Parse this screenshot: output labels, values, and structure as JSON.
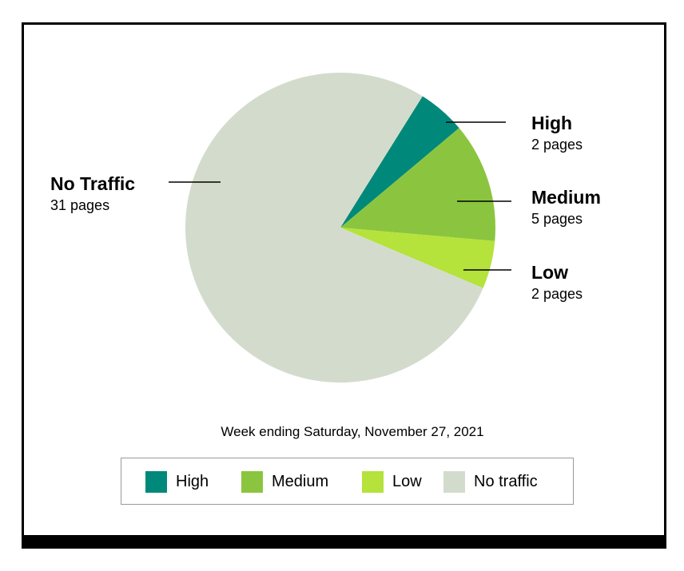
{
  "chart_data": {
    "type": "pie",
    "categories": [
      "High",
      "Medium",
      "Low",
      "No Traffic"
    ],
    "values": [
      2,
      5,
      2,
      31
    ],
    "colors": [
      "#00897b",
      "#8bc53f",
      "#b5e23b",
      "#d3dccc"
    ],
    "slice_labels": [
      {
        "name": "High",
        "count": "2 pages"
      },
      {
        "name": "Medium",
        "count": "5 pages"
      },
      {
        "name": "Low",
        "count": "2 pages"
      },
      {
        "name": "No Traffic",
        "count": "31 pages"
      }
    ],
    "caption": "Week ending Saturday, November 27, 2021",
    "legend": {
      "placement": "bottom",
      "items": [
        {
          "label": "High",
          "color": "#00897b"
        },
        {
          "label": "Medium",
          "color": "#8bc53f"
        },
        {
          "label": "Low",
          "color": "#b5e23b"
        },
        {
          "label": "No traffic",
          "color": "#d3dccc"
        }
      ]
    }
  }
}
